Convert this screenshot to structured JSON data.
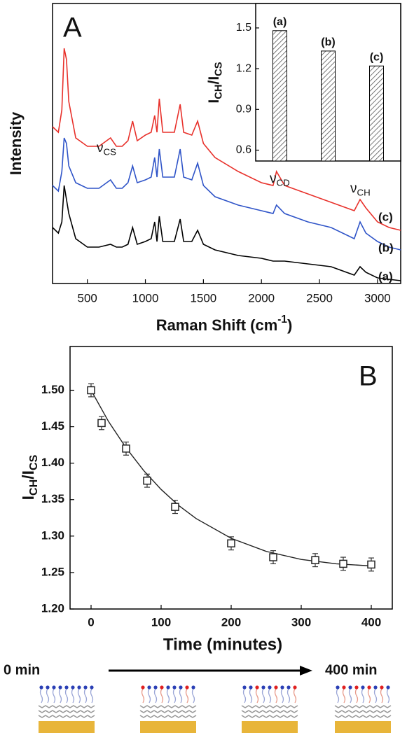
{
  "chart_data": [
    {
      "type": "line",
      "panel_label": "A",
      "xlabel_parts": [
        "Raman Shift (cm",
        "-1",
        ")"
      ],
      "ylabel": "Intensity",
      "x": [
        200,
        250,
        280,
        300,
        320,
        340,
        400,
        500,
        600,
        700,
        750,
        800,
        850,
        890,
        930,
        1000,
        1050,
        1080,
        1100,
        1120,
        1150,
        1200,
        1250,
        1300,
        1330,
        1400,
        1450,
        1500,
        1600,
        1800,
        2000,
        2100,
        2130,
        2200,
        2400,
        2600,
        2800,
        2850,
        2900,
        3000,
        3100,
        3200
      ],
      "xlim": [
        200,
        3200
      ],
      "xticks": [
        500,
        1000,
        1500,
        2000,
        2500,
        3000
      ],
      "ylim": [
        0,
        100
      ],
      "series": [
        {
          "label": "(a)",
          "color": "#000000",
          "values": [
            20,
            18,
            22,
            35,
            30,
            25,
            16,
            13,
            13,
            14,
            13,
            13,
            14,
            20,
            14,
            15,
            16,
            22,
            15,
            24,
            15,
            15,
            15,
            23,
            15,
            15,
            19,
            14,
            12,
            10,
            9,
            8,
            8,
            8,
            7,
            6,
            3,
            6,
            4,
            2,
            1.5,
            1
          ]
        },
        {
          "label": "(b)",
          "color": "#2f54c8",
          "values": [
            35,
            33,
            40,
            52,
            50,
            42,
            36,
            34,
            34,
            37,
            34,
            34,
            36,
            42,
            36,
            37,
            38,
            45,
            38,
            48,
            38,
            38,
            38,
            48,
            38,
            37,
            43,
            35,
            31,
            28,
            26,
            25,
            28,
            25,
            22,
            20,
            16,
            22,
            18,
            15,
            13,
            12
          ]
        },
        {
          "label": "(c)",
          "color": "#e8312b",
          "values": [
            56,
            54,
            62,
            84,
            80,
            65,
            52,
            49,
            49,
            52,
            49,
            49,
            51,
            58,
            51,
            53,
            54,
            60,
            54,
            66,
            54,
            54,
            54,
            64,
            54,
            53,
            58,
            50,
            45,
            40,
            36,
            35,
            40,
            35,
            32,
            29,
            26,
            30,
            27,
            22,
            20,
            19
          ]
        }
      ],
      "annotations": [
        [
          "ν",
          "CS"
        ],
        [
          "ν",
          "CD"
        ],
        [
          "ν",
          "CH"
        ]
      ]
    },
    {
      "type": "bar",
      "ylabel_parts": [
        "I",
        "CH",
        "/I",
        "CS"
      ],
      "categories": [
        "(a)",
        "(b)",
        "(c)"
      ],
      "values": [
        1.48,
        1.33,
        1.22
      ],
      "ylim": [
        0.52,
        1.68
      ],
      "yticks": [
        0.6,
        0.9,
        1.2,
        1.5
      ],
      "hatch": true
    },
    {
      "type": "scatter",
      "panel_label": "B",
      "xlabel": "Time (minutes)",
      "ylabel_parts": [
        "I",
        "CH",
        "/I",
        "CS"
      ],
      "x": [
        0,
        15,
        50,
        80,
        120,
        200,
        260,
        320,
        360,
        400
      ],
      "values": [
        1.5,
        1.455,
        1.42,
        1.376,
        1.34,
        1.29,
        1.271,
        1.267,
        1.262,
        1.261
      ],
      "errors": [
        0.009,
        0.009,
        0.009,
        0.009,
        0.009,
        0.009,
        0.009,
        0.009,
        0.009,
        0.009
      ],
      "fit": {
        "x": [
          0,
          25,
          50,
          75,
          100,
          125,
          150,
          200,
          250,
          300,
          350,
          400
        ],
        "values": [
          1.5,
          1.457,
          1.421,
          1.39,
          1.364,
          1.342,
          1.324,
          1.297,
          1.279,
          1.268,
          1.262,
          1.259
        ]
      },
      "xlim": [
        -30,
        430
      ],
      "xticks": [
        0,
        100,
        200,
        300,
        400
      ],
      "ylim": [
        1.2,
        1.56
      ],
      "yticks": [
        {
          "value": 1.2,
          "label": "1.20"
        },
        1.25,
        {
          "value": 1.3,
          "label": "1.30"
        },
        1.35,
        {
          "value": 1.4,
          "label": "1.40"
        },
        1.45,
        {
          "value": 1.5,
          "label": "1.50"
        }
      ]
    }
  ],
  "schematic": {
    "start_label": "0 min",
    "end_label": "400 min"
  }
}
